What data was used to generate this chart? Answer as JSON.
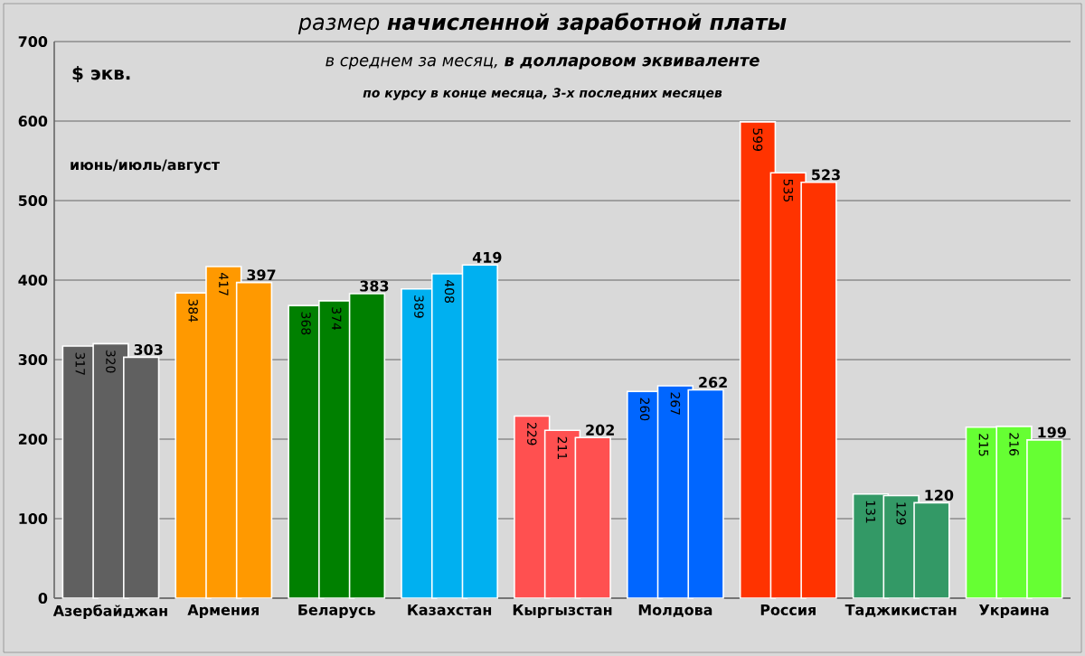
{
  "chart_data": {
    "type": "bar",
    "title": "*размер* **начисленной заработной платы**",
    "subtitle": "в среднем за месяц, **в долларовом эквиваленте**",
    "ylabel": "$ экв.",
    "annotations": [
      "по курсу в конце месяца, *3-х последних месяцев*",
      "июнь/июль/август"
    ],
    "categories": [
      "Азербайджан",
      "Армения",
      "Беларусь",
      "Казахстан",
      "Кыргызстан",
      "Молдова",
      "Россия",
      "Таджикистан",
      "Украина"
    ],
    "series": [
      {
        "values": [
          317,
          384,
          368,
          389,
          229,
          260,
          599,
          131,
          215
        ],
        "colors": [
          "#606060",
          "#ff9900",
          "#008000",
          "#00b0f0",
          "#ff5050",
          "#0066ff",
          "#ff3300",
          "#339966",
          "#66ff33"
        ]
      },
      {
        "values": [
          320,
          417,
          374,
          408,
          211,
          267,
          535,
          129,
          216
        ],
        "colors": [
          "#606060",
          "#ff9900",
          "#008000",
          "#00b0f0",
          "#ff5050",
          "#0066ff",
          "#ff3300",
          "#339966",
          "#66ff33"
        ]
      },
      {
        "values": [
          303,
          397,
          383,
          419,
          202,
          262,
          523,
          120,
          199
        ],
        "colors": [
          "#606060",
          "#ff9900",
          "#008000",
          "#00b0f0",
          "#ff5050",
          "#0066ff",
          "#ff3300",
          "#339966",
          "#66ff33"
        ]
      }
    ],
    "ylim": [
      0,
      700
    ],
    "yticks": [
      0,
      100,
      200,
      300,
      400,
      500,
      600,
      700
    ],
    "grid": "y",
    "data_labels": true
  }
}
